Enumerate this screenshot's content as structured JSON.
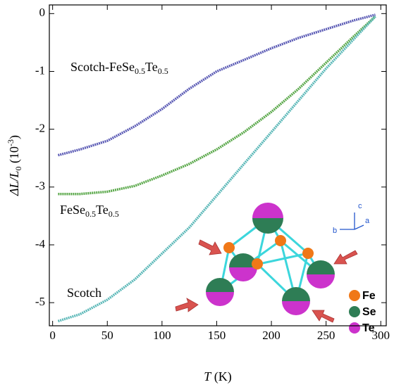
{
  "chart_data": {
    "type": "line",
    "x_label": "T (K)",
    "y_label": [
      "ΔL/L",
      "0",
      " (10",
      "-3",
      ")"
    ],
    "xlim": [
      -3,
      305
    ],
    "ylim": [
      -5.4,
      0.15
    ],
    "xticks": [
      0,
      50,
      100,
      150,
      200,
      250,
      300
    ],
    "yticks": [
      0,
      -1,
      -2,
      -3,
      -4,
      -5
    ],
    "x": [
      5,
      25,
      50,
      75,
      100,
      125,
      150,
      175,
      200,
      225,
      250,
      275,
      295
    ],
    "series": [
      {
        "name": "Scotch-FeSe0.5Te0.5",
        "color": "#5b5bb5",
        "values": [
          -2.45,
          -2.35,
          -2.2,
          -1.95,
          -1.65,
          -1.3,
          -1.0,
          -0.8,
          -0.6,
          -0.42,
          -0.27,
          -0.12,
          -0.02
        ]
      },
      {
        "name": "FeSe0.5Te0.5",
        "color": "#5aa84a",
        "values": [
          -3.12,
          -3.12,
          -3.08,
          -2.98,
          -2.8,
          -2.6,
          -2.35,
          -2.05,
          -1.7,
          -1.3,
          -0.85,
          -0.4,
          -0.05
        ]
      },
      {
        "name": "Scotch",
        "color": "#5bb8b8",
        "values": [
          -5.32,
          -5.2,
          -4.95,
          -4.6,
          -4.15,
          -3.7,
          -3.15,
          -2.6,
          -2.05,
          -1.5,
          -0.95,
          -0.45,
          -0.05
        ]
      }
    ]
  },
  "inset": {
    "axes": [
      "a",
      "b",
      "c"
    ],
    "legend": [
      "Fe",
      "Se",
      "Te"
    ]
  }
}
